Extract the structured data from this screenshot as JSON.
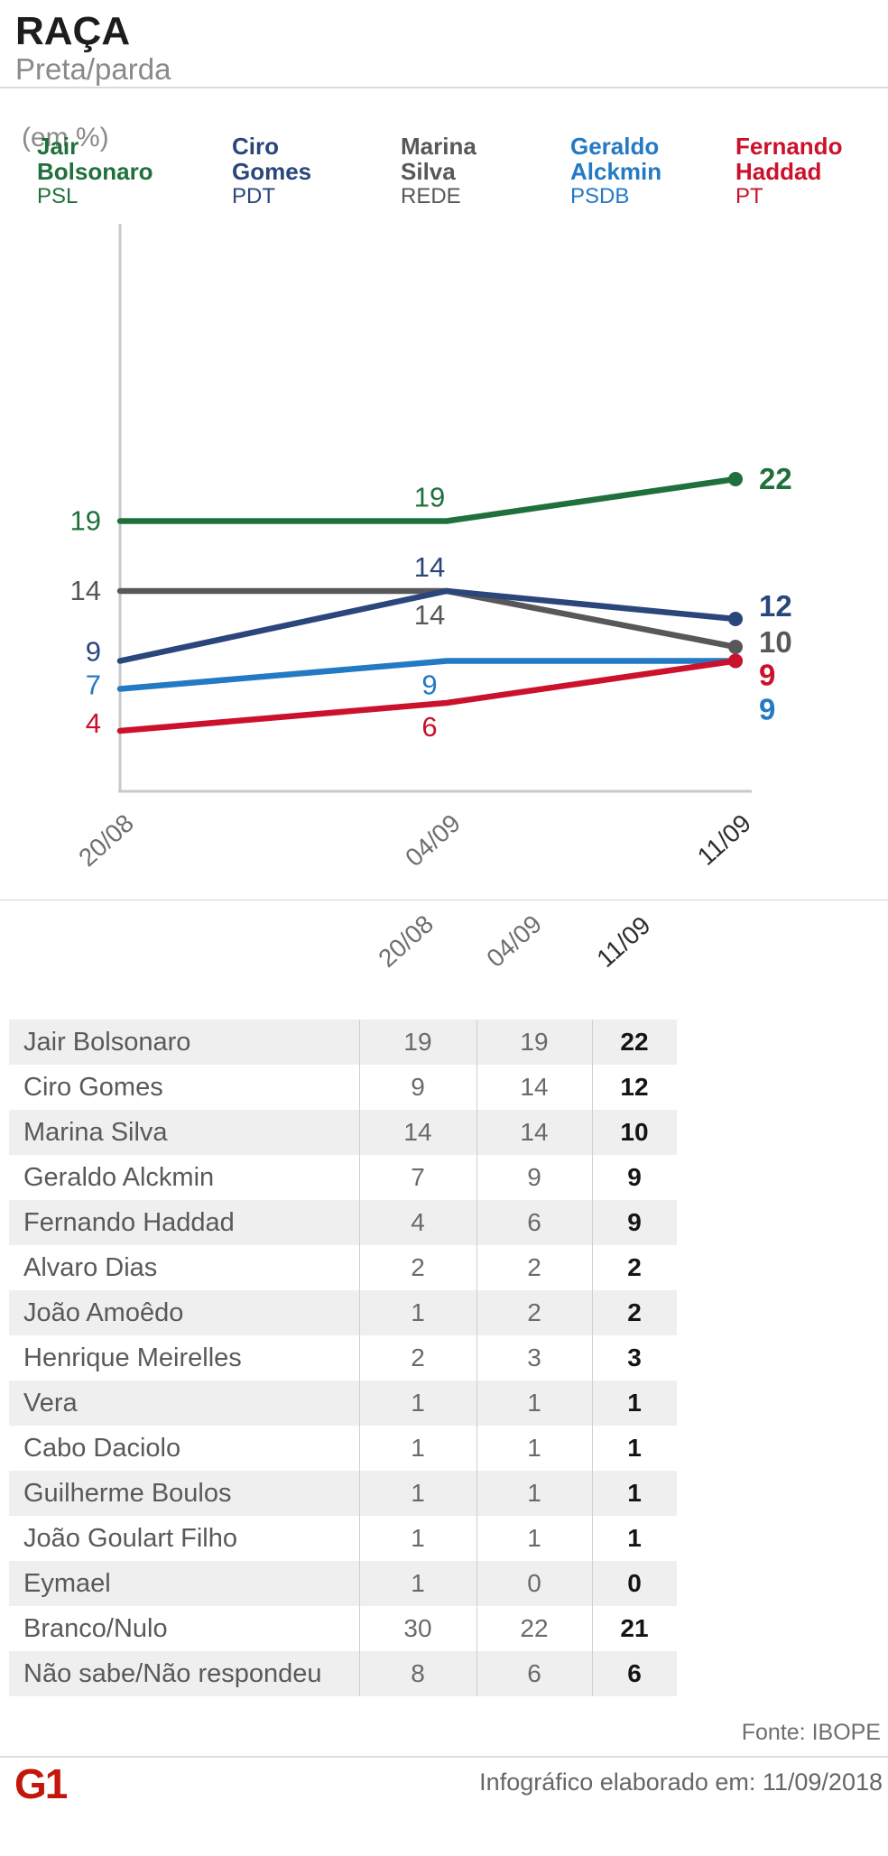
{
  "header": {
    "title": "RAÇA",
    "subtitle": "Preta/parda",
    "unit_label": "(em %)"
  },
  "chart_data": {
    "type": "line",
    "title": "RAÇA — Preta/parda",
    "xlabel": "",
    "ylabel": "(em %)",
    "categories": [
      "20/08",
      "04/09",
      "11/09"
    ],
    "series": [
      {
        "name": "Jair Bolsonaro",
        "first_name": "Jair",
        "last_name": "Bolsonaro",
        "party": "PSL",
        "color": "#20703C",
        "values": [
          19,
          19,
          22
        ],
        "mid_label": "above"
      },
      {
        "name": "Ciro Gomes",
        "first_name": "Ciro",
        "last_name": "Gomes",
        "party": "PDT",
        "color": "#2A467A",
        "values": [
          9,
          14,
          12
        ],
        "mid_label": "above"
      },
      {
        "name": "Marina Silva",
        "first_name": "Marina",
        "last_name": "Silva",
        "party": "REDE",
        "color": "#58585A",
        "values": [
          14,
          14,
          10
        ],
        "mid_label": "below"
      },
      {
        "name": "Geraldo Alckmin",
        "first_name": "Geraldo",
        "last_name": "Alckmin",
        "party": "PSDB",
        "color": "#237AC4",
        "values": [
          7,
          9,
          9
        ],
        "mid_label": "below"
      },
      {
        "name": "Fernando Haddad",
        "first_name": "Fernando",
        "last_name": "Haddad",
        "party": "PT",
        "color": "#CB112B",
        "values": [
          4,
          6,
          9
        ],
        "mid_label": "below"
      }
    ],
    "ylim": [
      0,
      40
    ],
    "grid": false,
    "legend_position": "top",
    "last_point_emphasis": true
  },
  "table": {
    "header": [
      "20/08",
      "04/09",
      "11/09"
    ],
    "rows": [
      {
        "label": "Jair Bolsonaro",
        "values": [
          19,
          19,
          22
        ]
      },
      {
        "label": "Ciro Gomes",
        "values": [
          9,
          14,
          12
        ]
      },
      {
        "label": "Marina Silva",
        "values": [
          14,
          14,
          10
        ]
      },
      {
        "label": "Geraldo Alckmin",
        "values": [
          7,
          9,
          9
        ]
      },
      {
        "label": "Fernando Haddad",
        "values": [
          4,
          6,
          9
        ]
      },
      {
        "label": "Alvaro Dias",
        "values": [
          2,
          2,
          2
        ]
      },
      {
        "label": "João Amoêdo",
        "values": [
          1,
          2,
          2
        ]
      },
      {
        "label": "Henrique Meirelles",
        "values": [
          2,
          3,
          3
        ]
      },
      {
        "label": "Vera",
        "values": [
          1,
          1,
          1
        ]
      },
      {
        "label": "Cabo Daciolo",
        "values": [
          1,
          1,
          1
        ]
      },
      {
        "label": "Guilherme Boulos",
        "values": [
          1,
          1,
          1
        ]
      },
      {
        "label": "João Goulart Filho",
        "values": [
          1,
          1,
          1
        ]
      },
      {
        "label": "Eymael",
        "values": [
          1,
          0,
          0
        ]
      },
      {
        "label": "Branco/Nulo",
        "values": [
          30,
          22,
          21
        ]
      },
      {
        "label": "Não sabe/Não respondeu",
        "values": [
          8,
          6,
          6
        ]
      }
    ]
  },
  "footer": {
    "source": "Fonte: IBOPE",
    "note": "Infográfico elaborado em: 11/09/2018",
    "logo": "G1"
  }
}
